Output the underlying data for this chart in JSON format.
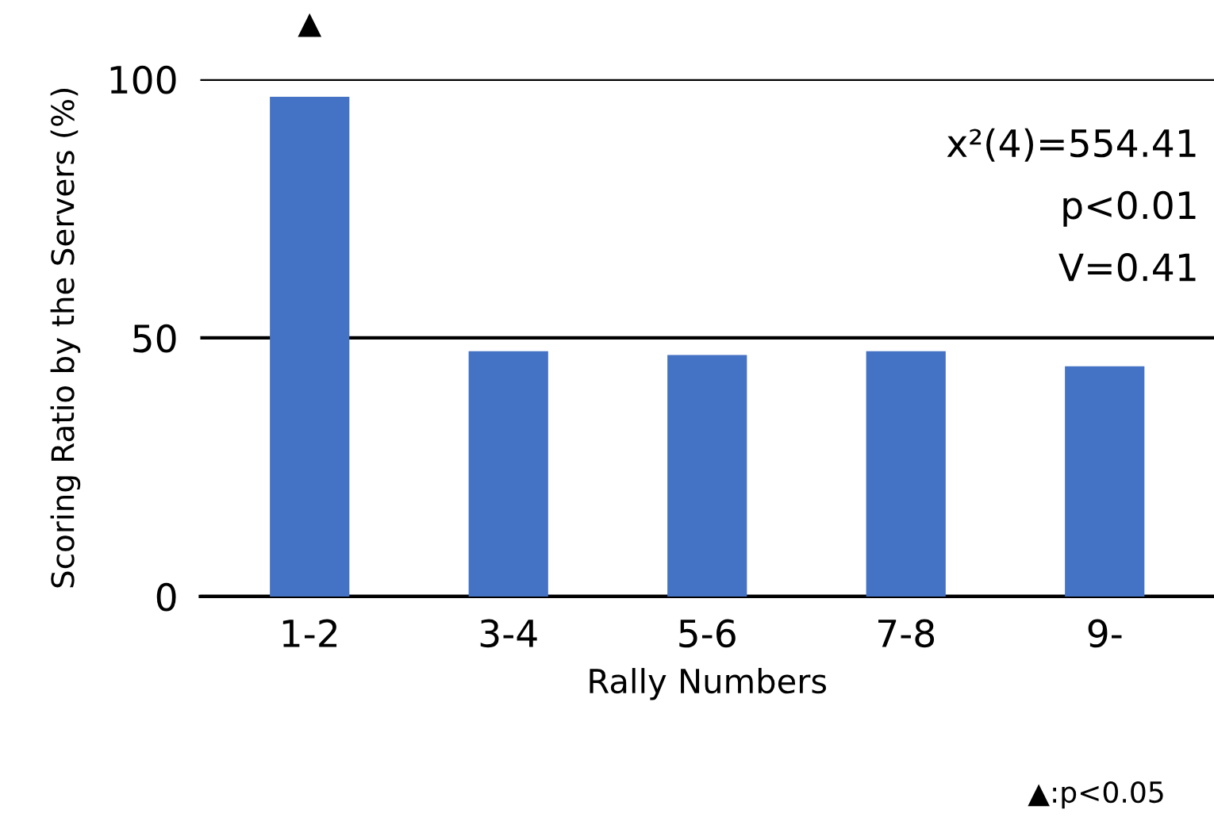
{
  "chart_data": {
    "type": "bar",
    "xlabel": "Rally Numbers",
    "ylabel": "Scoring Ratio by the Servers (%)",
    "categories": [
      "1-2",
      "3-4",
      "5-6",
      "7-8",
      "9-"
    ],
    "values": [
      96.6,
      47.4,
      46.7,
      47.4,
      44.5
    ],
    "color": "#4472c4",
    "ylim": [
      0,
      100
    ],
    "yticks": [
      0,
      50,
      100
    ],
    "grid": "y",
    "annotations": [
      "▲",
      "x²(4)=554.41",
      "p<0.01",
      "V=0.41",
      "▲:p<0.05"
    ]
  }
}
